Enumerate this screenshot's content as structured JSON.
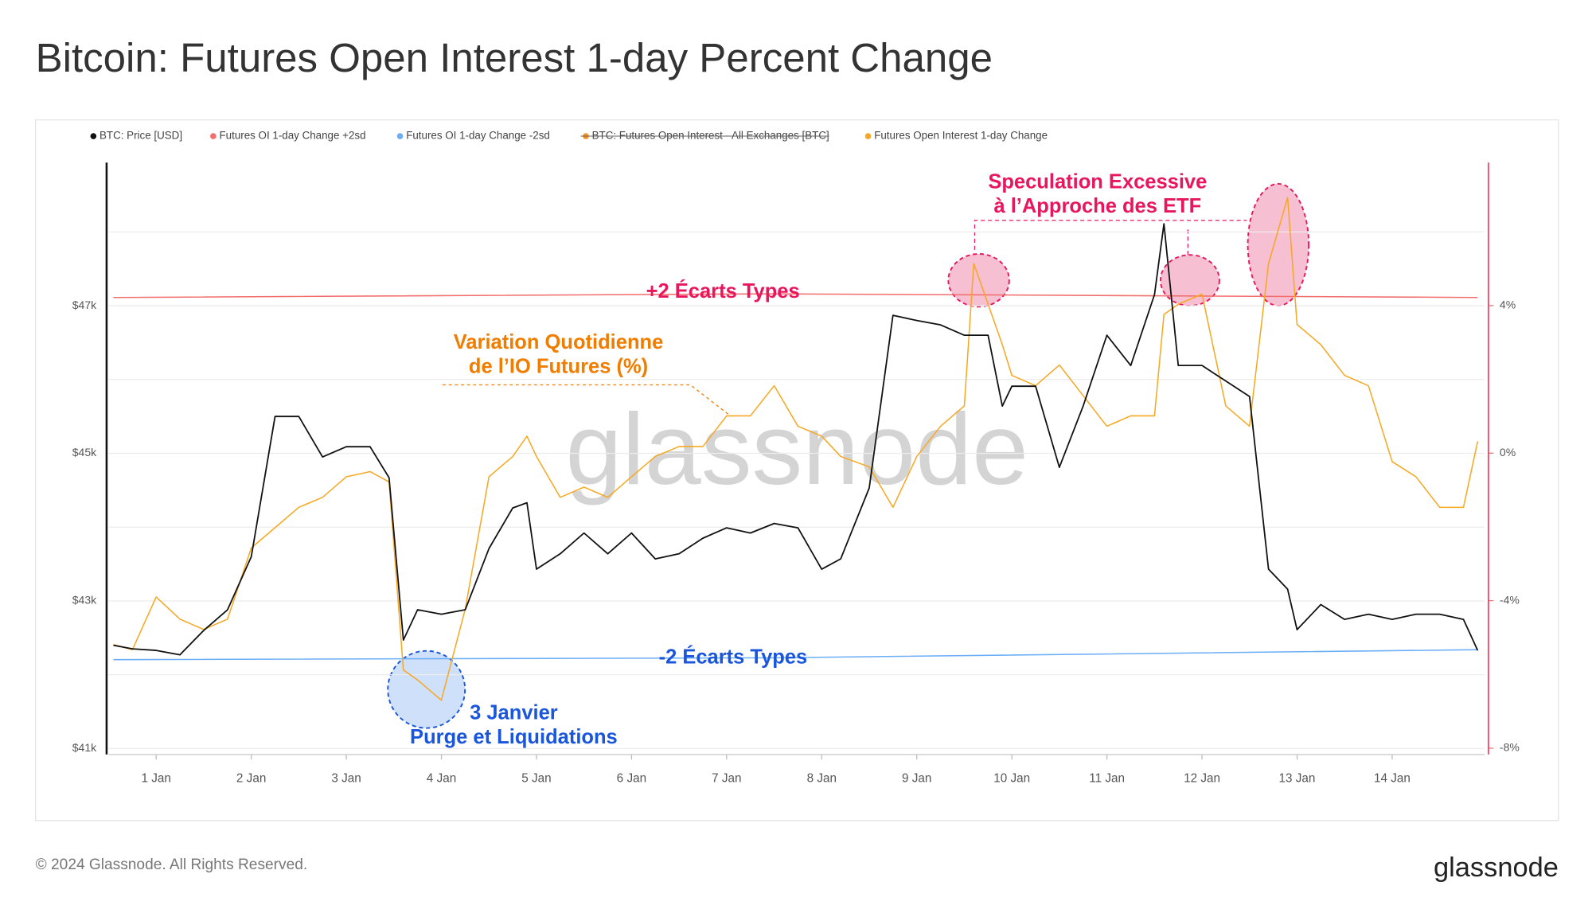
{
  "chart_data": {
    "type": "line",
    "title": "Bitcoin: Futures Open Interest 1-day Percent Change",
    "x": [
      0.55,
      0.75,
      1.0,
      1.25,
      1.5,
      1.75,
      2.0,
      2.25,
      2.5,
      2.75,
      3.0,
      3.25,
      3.45,
      3.6,
      3.75,
      4.0,
      4.25,
      4.5,
      4.75,
      4.9,
      5.0,
      5.25,
      5.5,
      5.75,
      6.0,
      6.25,
      6.5,
      6.75,
      7.0,
      7.25,
      7.5,
      7.75,
      8.0,
      8.2,
      8.5,
      8.75,
      9.0,
      9.25,
      9.5,
      9.6,
      9.75,
      9.9,
      10.0,
      10.25,
      10.5,
      10.75,
      11.0,
      11.25,
      11.5,
      11.6,
      11.75,
      12.0,
      12.25,
      12.5,
      12.7,
      12.9,
      13.0,
      13.25,
      13.5,
      13.75,
      14.0,
      14.25,
      14.5,
      14.75,
      14.9
    ],
    "series": [
      {
        "name": "BTC: Price [USD]",
        "color": "#111111",
        "axis": "y",
        "values": [
          42400,
          42350,
          42330,
          42270,
          42600,
          42880,
          43600,
          45500,
          45500,
          44950,
          45090,
          45090,
          44670,
          42470,
          42880,
          42820,
          42880,
          43710,
          44260,
          44330,
          43430,
          43640,
          43920,
          43640,
          43920,
          43570,
          43640,
          43850,
          43990,
          43920,
          44050,
          43990,
          43430,
          43570,
          44530,
          46870,
          46800,
          46740,
          46600,
          46600,
          46600,
          45640,
          45910,
          45910,
          44810,
          45640,
          46600,
          46190,
          47150,
          48110,
          46190,
          46190,
          45980,
          45770,
          43430,
          43160,
          42610,
          42950,
          42750,
          42820,
          42750,
          42820,
          42820,
          42750,
          42330
        ]
      },
      {
        "name": "Futures OI 1-day Change +2sd",
        "color": "#f26d6d",
        "axis": "y2",
        "x": [
          0.55,
          7.5,
          14.9
        ],
        "values": [
          4.22,
          4.32,
          4.22
        ]
      },
      {
        "name": "Futures OI 1-day Change -2sd",
        "color": "#6aaef7",
        "axis": "y2",
        "x": [
          0.55,
          7.5,
          14.9
        ],
        "values": [
          -5.6,
          -5.55,
          -5.33
        ]
      },
      {
        "name": "BTC: Futures Open Interest - All Exchanges [BTC]",
        "color": "#f7931a",
        "axis": "y",
        "hidden": true,
        "x": [],
        "values": []
      },
      {
        "name": "Futures Open Interest 1-day Change",
        "color": "#f7a823",
        "axis": "y2",
        "values": [
          -5.19,
          -5.33,
          -3.9,
          -4.5,
          -4.78,
          -4.5,
          -2.57,
          -2.02,
          -1.47,
          -1.2,
          -0.64,
          -0.5,
          -0.78,
          -5.88,
          -6.15,
          -6.7,
          -4.23,
          -0.64,
          -0.09,
          0.46,
          -0.09,
          -1.2,
          -0.92,
          -1.2,
          -0.64,
          -0.09,
          0.18,
          0.18,
          1.01,
          1.01,
          1.83,
          0.73,
          0.46,
          -0.09,
          -0.37,
          -1.47,
          -0.09,
          0.73,
          1.28,
          5.14,
          4.04,
          2.94,
          2.11,
          1.83,
          2.39,
          1.56,
          0.73,
          1.01,
          1.01,
          3.76,
          4.04,
          4.31,
          1.28,
          0.73,
          5.14,
          6.93,
          3.49,
          2.94,
          2.11,
          1.83,
          -0.23,
          -0.64,
          -1.47,
          -1.47,
          0.32
        ]
      }
    ],
    "xlim": [
      0.5,
      14.97
    ],
    "xticks": [
      {
        "value": 1,
        "label": "1 Jan"
      },
      {
        "value": 2,
        "label": "2 Jan"
      },
      {
        "value": 3,
        "label": "3 Jan"
      },
      {
        "value": 4,
        "label": "4 Jan"
      },
      {
        "value": 5,
        "label": "5 Jan"
      },
      {
        "value": 6,
        "label": "6 Jan"
      },
      {
        "value": 7,
        "label": "7 Jan"
      },
      {
        "value": 8,
        "label": "8 Jan"
      },
      {
        "value": 9,
        "label": "9 Jan"
      },
      {
        "value": 10,
        "label": "10 Jan"
      },
      {
        "value": 11,
        "label": "11 Jan"
      },
      {
        "value": 12,
        "label": "12 Jan"
      },
      {
        "value": 13,
        "label": "13 Jan"
      },
      {
        "value": 14,
        "label": "14 Jan"
      }
    ],
    "ylim": [
      40920,
      48940
    ],
    "yticks": [
      {
        "value": 41000,
        "label": "$41k"
      },
      {
        "value": 43000,
        "label": "$43k"
      },
      {
        "value": 45000,
        "label": "$45k"
      },
      {
        "value": 47000,
        "label": "$47k"
      }
    ],
    "y_minor_grid": [
      42000,
      44000,
      46000,
      48000
    ],
    "y2lim": [
      -8.17,
      7.88
    ],
    "y2ticks": [
      {
        "value": -8,
        "label": "-8%"
      },
      {
        "value": -4,
        "label": "-4%"
      },
      {
        "value": 0,
        "label": "0%"
      },
      {
        "value": 4,
        "label": "4%"
      }
    ],
    "grid": true,
    "legend": "top-left",
    "annotations": [
      {
        "lines": [
          "+2 Écarts Types"
        ],
        "color": "#e8175d"
      },
      {
        "lines": [
          "-2 Écarts Types"
        ],
        "color": "#1a56db"
      },
      {
        "lines": [
          "Variation Quotidienne",
          "de l’IO Futures (%)"
        ],
        "color": "#f07d00"
      },
      {
        "lines": [
          "3 Janvier",
          "Purge et Liquidations"
        ],
        "color": "#1a56db"
      },
      {
        "lines": [
          "Speculation Excessive",
          "à l’Approche des ETF"
        ],
        "color": "#e8175d"
      }
    ]
  },
  "watermark": "glassnode",
  "footer": {
    "copyright": "© 2024 Glassnode. All Rights Reserved.",
    "logo": "glassnode"
  }
}
